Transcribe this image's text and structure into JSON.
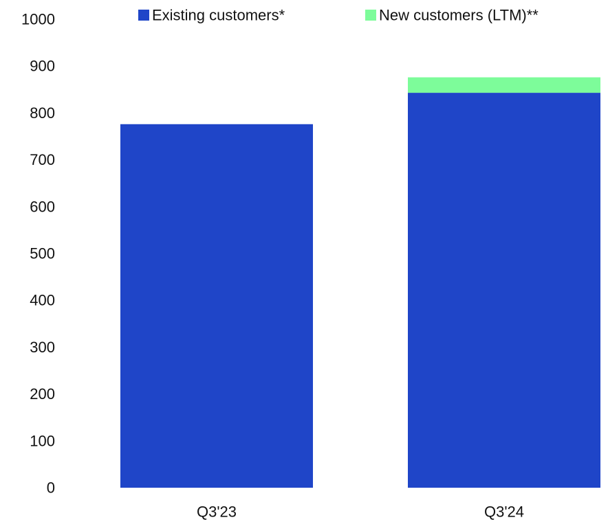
{
  "chart_data": {
    "type": "bar",
    "stacked": true,
    "categories": [
      "Q3'23",
      "Q3'24"
    ],
    "series": [
      {
        "name": "Existing customers*",
        "values": [
          776,
          843
        ],
        "color": "#1f45c8"
      },
      {
        "name": "New customers (LTM)**",
        "values": [
          0,
          33
        ],
        "color": "#7dfc9a"
      }
    ],
    "ylim": [
      0,
      1000
    ],
    "yticks": [
      0,
      100,
      200,
      300,
      400,
      500,
      600,
      700,
      800,
      900,
      1000
    ],
    "title": "",
    "xlabel": "",
    "ylabel": "",
    "grid": false,
    "legend_position": "top"
  }
}
